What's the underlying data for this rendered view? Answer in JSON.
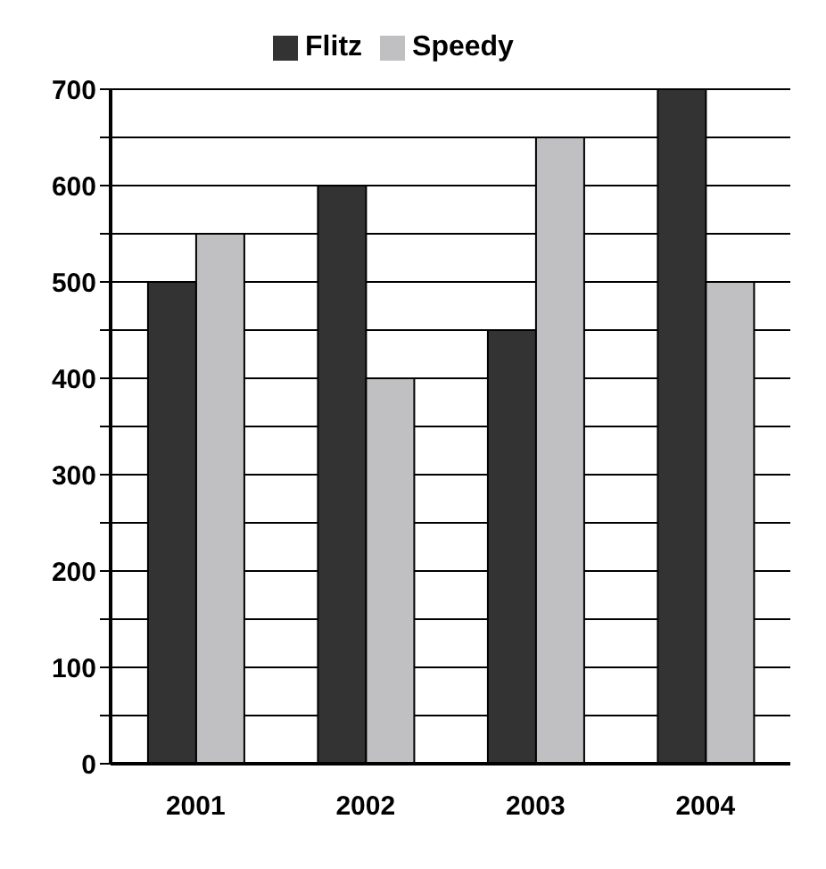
{
  "chart_data": {
    "type": "bar",
    "categories": [
      "2001",
      "2002",
      "2003",
      "2004"
    ],
    "series": [
      {
        "name": "Flitz",
        "color": "#333333",
        "values": [
          500,
          600,
          450,
          700
        ]
      },
      {
        "name": "Speedy",
        "color": "#c0c0c3",
        "values": [
          550,
          400,
          650,
          500
        ]
      }
    ],
    "ylim": [
      0,
      700
    ],
    "yticks": [
      0,
      {
        "value": 50,
        "label": null
      },
      100,
      {
        "value": 150,
        "label": null
      },
      200,
      {
        "value": 250,
        "label": null
      },
      300,
      {
        "value": 350,
        "label": null
      },
      400,
      {
        "value": 450,
        "label": null
      },
      500,
      {
        "value": 550,
        "label": null
      },
      600,
      {
        "value": 650,
        "label": null
      },
      700
    ],
    "grid": "y",
    "legend": "top"
  }
}
